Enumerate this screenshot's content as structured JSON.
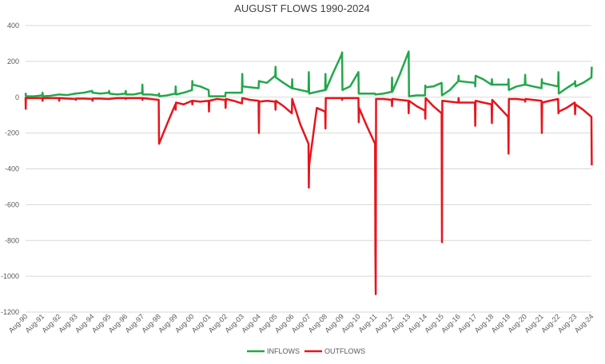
{
  "chart_data": {
    "type": "line",
    "title": "AUGUST FLOWS 1990-2024",
    "xlabel": "",
    "ylabel": "",
    "ylim": [
      -1200,
      400
    ],
    "yticks": [
      400,
      200,
      0,
      -200,
      -400,
      -600,
      -800,
      -1000,
      -1200
    ],
    "grid": true,
    "legend_position": "bottom",
    "categories": [
      "Aug-90",
      "Aug-91",
      "Aug-92",
      "Aug-93",
      "Aug-94",
      "Aug-95",
      "Aug-96",
      "Aug-97",
      "Aug-98",
      "Aug-99",
      "Aug-00",
      "Aug-01",
      "Aug-02",
      "Aug-03",
      "Aug-04",
      "Aug-05",
      "Aug-06",
      "Aug-07",
      "Aug-08",
      "Aug-09",
      "Aug-10",
      "Aug-11",
      "Aug-12",
      "Aug-13",
      "Aug-14",
      "Aug-15",
      "Aug-16",
      "Aug-17",
      "Aug-18",
      "Aug-19",
      "Aug-20",
      "Aug-21",
      "Aug-22",
      "Aug-23",
      "Aug-24"
    ],
    "series": [
      {
        "name": "INFLOWS",
        "color": "#22a84a",
        "points": [
          [
            0,
            10
          ],
          [
            0.01,
            20
          ],
          [
            0.02,
            5
          ],
          [
            0.5,
            5
          ],
          [
            1,
            10
          ],
          [
            1.02,
            25
          ],
          [
            1.04,
            5
          ],
          [
            1.5,
            8
          ],
          [
            2,
            15
          ],
          [
            2.5,
            12
          ],
          [
            3,
            20
          ],
          [
            3.5,
            25
          ],
          [
            4,
            35
          ],
          [
            4.02,
            25
          ],
          [
            4.5,
            20
          ],
          [
            5,
            25
          ],
          [
            5.02,
            35
          ],
          [
            5.04,
            20
          ],
          [
            5.5,
            15
          ],
          [
            6,
            20
          ],
          [
            6.02,
            35
          ],
          [
            6.04,
            15
          ],
          [
            6.5,
            15
          ],
          [
            7,
            25
          ],
          [
            7.02,
            70
          ],
          [
            7.04,
            15
          ],
          [
            7.5,
            15
          ],
          [
            8,
            10
          ],
          [
            8.02,
            20
          ],
          [
            8.04,
            5
          ],
          [
            8.5,
            10
          ],
          [
            9,
            20
          ],
          [
            9.02,
            60
          ],
          [
            9.04,
            15
          ],
          [
            9.5,
            25
          ],
          [
            10,
            40
          ],
          [
            10.02,
            90
          ],
          [
            10.04,
            70
          ],
          [
            10.5,
            60
          ],
          [
            11,
            40
          ],
          [
            11.02,
            5
          ],
          [
            11.5,
            5
          ],
          [
            12,
            5
          ],
          [
            12.02,
            25
          ],
          [
            12.5,
            25
          ],
          [
            13,
            25
          ],
          [
            13.02,
            130
          ],
          [
            13.04,
            60
          ],
          [
            13.5,
            55
          ],
          [
            14,
            50
          ],
          [
            14.02,
            90
          ],
          [
            14.5,
            80
          ],
          [
            15,
            120
          ],
          [
            15.02,
            170
          ],
          [
            15.04,
            110
          ],
          [
            15.5,
            80
          ],
          [
            16,
            50
          ],
          [
            16.02,
            100
          ],
          [
            16.04,
            50
          ],
          [
            16.5,
            40
          ],
          [
            17,
            30
          ],
          [
            17.02,
            140
          ],
          [
            17.04,
            20
          ],
          [
            17.5,
            30
          ],
          [
            18,
            40
          ],
          [
            18.02,
            130
          ],
          [
            18.04,
            40
          ],
          [
            18.5,
            140
          ],
          [
            19,
            240
          ],
          [
            19.02,
            250
          ],
          [
            19.04,
            40
          ],
          [
            19.5,
            60
          ],
          [
            20,
            140
          ],
          [
            20.02,
            20
          ],
          [
            20.5,
            20
          ],
          [
            21,
            20
          ],
          [
            21.02,
            15
          ],
          [
            21.5,
            20
          ],
          [
            22,
            30
          ],
          [
            22.02,
            110
          ],
          [
            22.04,
            30
          ],
          [
            22.5,
            130
          ],
          [
            23,
            250
          ],
          [
            23.02,
            255
          ],
          [
            23.04,
            5
          ],
          [
            23.5,
            10
          ],
          [
            24,
            10
          ],
          [
            24.02,
            65
          ],
          [
            24.04,
            55
          ],
          [
            24.5,
            60
          ],
          [
            25,
            80
          ],
          [
            25.02,
            10
          ],
          [
            25.5,
            40
          ],
          [
            26,
            90
          ],
          [
            26.02,
            120
          ],
          [
            26.04,
            90
          ],
          [
            26.5,
            85
          ],
          [
            27,
            80
          ],
          [
            27.02,
            60
          ],
          [
            27.04,
            120
          ],
          [
            27.5,
            100
          ],
          [
            28,
            70
          ],
          [
            28.02,
            100
          ],
          [
            28.04,
            70
          ],
          [
            28.5,
            70
          ],
          [
            29,
            70
          ],
          [
            29.02,
            100
          ],
          [
            29.04,
            40
          ],
          [
            29.5,
            60
          ],
          [
            30,
            70
          ],
          [
            30.02,
            125
          ],
          [
            30.04,
            70
          ],
          [
            30.5,
            60
          ],
          [
            31,
            50
          ],
          [
            31.02,
            100
          ],
          [
            31.04,
            80
          ],
          [
            31.5,
            70
          ],
          [
            32,
            60
          ],
          [
            32.02,
            140
          ],
          [
            32.04,
            20
          ],
          [
            32.5,
            50
          ],
          [
            33,
            80
          ],
          [
            33.02,
            90
          ],
          [
            33.04,
            60
          ],
          [
            33.5,
            80
          ],
          [
            34,
            110
          ],
          [
            34.02,
            170
          ]
        ]
      },
      {
        "name": "OUTFLOWS",
        "color": "#e8141b",
        "points": [
          [
            0,
            0
          ],
          [
            0.01,
            -65
          ],
          [
            0.02,
            -5
          ],
          [
            0.5,
            -5
          ],
          [
            1,
            -5
          ],
          [
            1.02,
            -20
          ],
          [
            1.04,
            -5
          ],
          [
            1.5,
            -5
          ],
          [
            2,
            -5
          ],
          [
            2.02,
            -20
          ],
          [
            2.04,
            -5
          ],
          [
            2.5,
            -8
          ],
          [
            3,
            -10
          ],
          [
            3.02,
            -15
          ],
          [
            3.04,
            -8
          ],
          [
            3.5,
            -8
          ],
          [
            4,
            -10
          ],
          [
            4.02,
            -20
          ],
          [
            4.04,
            -8
          ],
          [
            4.5,
            -8
          ],
          [
            5,
            -10
          ],
          [
            5.5,
            -5
          ],
          [
            6,
            -5
          ],
          [
            6.02,
            -10
          ],
          [
            6.04,
            -5
          ],
          [
            6.5,
            -5
          ],
          [
            7,
            -5
          ],
          [
            7.02,
            -15
          ],
          [
            7.04,
            -5
          ],
          [
            7.5,
            -10
          ],
          [
            8,
            -15
          ],
          [
            8.02,
            -260
          ],
          [
            8.5,
            -150
          ],
          [
            9,
            -40
          ],
          [
            9.02,
            -70
          ],
          [
            9.04,
            -30
          ],
          [
            9.5,
            -40
          ],
          [
            10,
            -20
          ],
          [
            10.02,
            -40
          ],
          [
            10.04,
            -20
          ],
          [
            10.5,
            -25
          ],
          [
            11,
            -20
          ],
          [
            11.02,
            -80
          ],
          [
            11.04,
            -20
          ],
          [
            11.5,
            -10
          ],
          [
            12,
            -15
          ],
          [
            12.02,
            -60
          ],
          [
            12.04,
            -10
          ],
          [
            12.5,
            -20
          ],
          [
            13,
            -35
          ],
          [
            13.02,
            -5
          ],
          [
            13.5,
            -15
          ],
          [
            14,
            -20
          ],
          [
            14.02,
            -200
          ],
          [
            14.04,
            -25
          ],
          [
            14.5,
            -20
          ],
          [
            15,
            -25
          ],
          [
            15.02,
            -70
          ],
          [
            15.04,
            -20
          ],
          [
            15.5,
            -50
          ],
          [
            16,
            -90
          ],
          [
            16.02,
            -10
          ],
          [
            16.5,
            -150
          ],
          [
            17,
            -260
          ],
          [
            17.02,
            -505
          ],
          [
            17.04,
            -380
          ],
          [
            17.5,
            -60
          ],
          [
            18,
            -80
          ],
          [
            18.02,
            -175
          ],
          [
            18.04,
            -5
          ],
          [
            18.5,
            -5
          ],
          [
            19,
            -5
          ],
          [
            19.02,
            -15
          ],
          [
            19.04,
            -5
          ],
          [
            19.5,
            -5
          ],
          [
            20,
            -5
          ],
          [
            20.02,
            -140
          ],
          [
            20.04,
            -60
          ],
          [
            20.5,
            -160
          ],
          [
            21,
            -260
          ],
          [
            21.02,
            -870
          ],
          [
            21.04,
            -1100
          ],
          [
            21.06,
            -10
          ],
          [
            21.5,
            -10
          ],
          [
            22,
            -15
          ],
          [
            22.02,
            -50
          ],
          [
            22.04,
            -10
          ],
          [
            22.5,
            -15
          ],
          [
            23,
            -20
          ],
          [
            23.02,
            -90
          ],
          [
            23.04,
            -20
          ],
          [
            23.5,
            -50
          ],
          [
            24,
            -75
          ],
          [
            24.02,
            -120
          ],
          [
            24.04,
            -5
          ],
          [
            24.5,
            -50
          ],
          [
            25,
            -90
          ],
          [
            25.02,
            -810
          ],
          [
            25.04,
            -20
          ],
          [
            25.5,
            -25
          ],
          [
            26,
            -30
          ],
          [
            26.02,
            -5
          ],
          [
            26.04,
            -30
          ],
          [
            26.5,
            -30
          ],
          [
            27,
            -30
          ],
          [
            27.02,
            -160
          ],
          [
            27.04,
            -20
          ],
          [
            27.5,
            -30
          ],
          [
            28,
            -40
          ],
          [
            28.02,
            -145
          ],
          [
            28.04,
            -15
          ],
          [
            28.5,
            -60
          ],
          [
            29,
            -110
          ],
          [
            29.02,
            -315
          ],
          [
            29.04,
            -10
          ],
          [
            29.5,
            -10
          ],
          [
            30,
            -15
          ],
          [
            30.02,
            -25
          ],
          [
            30.04,
            -10
          ],
          [
            30.5,
            -15
          ],
          [
            31,
            -20
          ],
          [
            31.02,
            -200
          ],
          [
            31.04,
            -30
          ],
          [
            31.5,
            -20
          ],
          [
            32,
            -10
          ],
          [
            32.02,
            -90
          ],
          [
            32.04,
            -80
          ],
          [
            32.5,
            -60
          ],
          [
            33,
            -30
          ],
          [
            33.02,
            -95
          ],
          [
            33.04,
            -40
          ],
          [
            33.5,
            -70
          ],
          [
            34,
            -110
          ],
          [
            34.02,
            -380
          ]
        ]
      }
    ]
  }
}
